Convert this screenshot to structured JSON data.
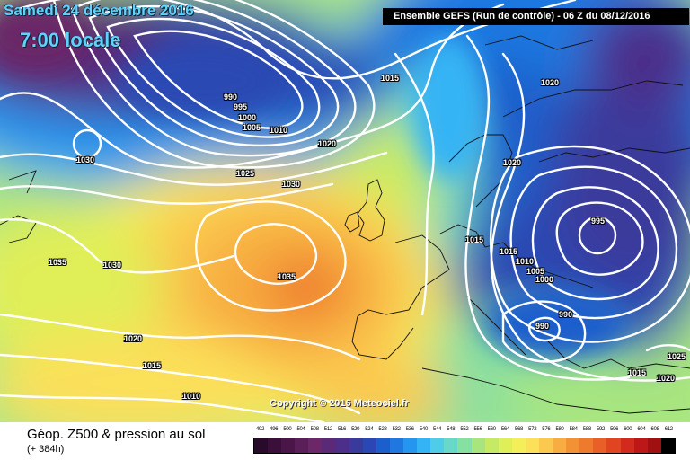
{
  "header": {
    "date_label": "Samedi 24 décembre 2016",
    "time_label": "7:00 locale",
    "run_info": "Ensemble GEFS  (Run de contrôle)  -  06 Z du 08/12/2016"
  },
  "copyright": "Copyright © 2016 Meteociel.fr",
  "footer": {
    "title": "Géop. Z500 & pression au sol",
    "subtitle": "(+ 384h)"
  },
  "isobar_labels": [
    "990",
    "995",
    "1000",
    "1005",
    "1010",
    "1015",
    "1020",
    "1025",
    "1030",
    "1035",
    "1030",
    "1035",
    "1030",
    "1020",
    "1015",
    "1010",
    "1015",
    "1020",
    "1020",
    "1015",
    "1010",
    "1005",
    "1000",
    "995",
    "990",
    "990",
    "1015",
    "1020",
    "1025"
  ],
  "legend": {
    "ticks": [
      "492",
      "496",
      "500",
      "504",
      "508",
      "512",
      "516",
      "520",
      "524",
      "528",
      "532",
      "536",
      "540",
      "544",
      "548",
      "552",
      "556",
      "560",
      "564",
      "568",
      "572",
      "576",
      "580",
      "584",
      "588",
      "592",
      "596",
      "600",
      "604",
      "608",
      "612"
    ],
    "colors": [
      "#2a0a2a",
      "#3a0f3a",
      "#4a1648",
      "#5a1e58",
      "#6b2767",
      "#5a2a78",
      "#4b2f8a",
      "#3a3a9c",
      "#2a48b3",
      "#1c5fcc",
      "#1f78e0",
      "#2596ef",
      "#35b4f5",
      "#4fcde8",
      "#6ad8c8",
      "#86dfa3",
      "#a8e57f",
      "#c6ea66",
      "#e0ee58",
      "#f4ee58",
      "#fbe05a",
      "#fbc94f",
      "#f7ad3f",
      "#f39235",
      "#ee7a2e",
      "#e85f27",
      "#e04421",
      "#d22a1d",
      "#bd1818",
      "#a01010",
      "#000000"
    ]
  }
}
